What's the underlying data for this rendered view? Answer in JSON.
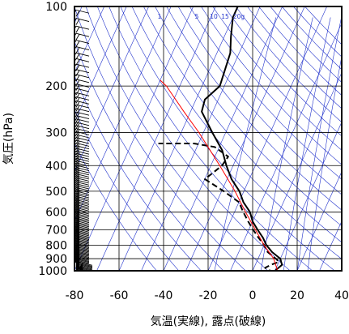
{
  "chart_data": {
    "type": "line",
    "title": "",
    "xlabel": "気温(実線), 露点(破線)",
    "ylabel": "気圧(hPa)",
    "xlim": [
      -80,
      40
    ],
    "ylim": [
      1000,
      100
    ],
    "y_scale": "log",
    "x_ticks": [
      -80,
      -60,
      -40,
      -20,
      0,
      20,
      40
    ],
    "x_tick_labels": [
      "-80",
      "-60",
      "-40",
      "-20",
      "0",
      "20",
      "40"
    ],
    "y_ticks": [
      100,
      200,
      300,
      400,
      500,
      600,
      700,
      800,
      900,
      1000
    ],
    "y_tick_labels": [
      "100",
      "200",
      "300",
      "400",
      "500",
      "600",
      "700",
      "800",
      "900",
      "1000"
    ],
    "mixing_ratio_labels": [
      "1",
      "5",
      "10",
      "15",
      "20g"
    ],
    "series": [
      {
        "style": "solid-black",
        "points": [
          [
            1020,
            12
          ],
          [
            1000,
            10
          ],
          [
            975,
            11
          ],
          [
            950,
            12
          ],
          [
            925,
            11
          ],
          [
            900,
            10
          ],
          [
            850,
            5
          ],
          [
            800,
            1
          ],
          [
            750,
            -2
          ],
          [
            700,
            -6
          ],
          [
            650,
            -10
          ],
          [
            600,
            -13
          ],
          [
            550,
            -18
          ],
          [
            500,
            -22
          ],
          [
            450,
            -28
          ],
          [
            400,
            -33
          ],
          [
            350,
            -38
          ],
          [
            300,
            -46
          ],
          [
            250,
            -55
          ],
          [
            225,
            -56
          ],
          [
            200,
            -52
          ],
          [
            150,
            -54
          ],
          [
            130,
            -57
          ],
          [
            110,
            -60
          ],
          [
            100,
            -60
          ]
        ]
      },
      {
        "style": "dashed-black",
        "points": [
          [
            1020,
            10
          ],
          [
            1000,
            8
          ],
          [
            975,
            5
          ],
          [
            950,
            7
          ],
          [
            925,
            10
          ],
          [
            900,
            8
          ],
          [
            850,
            3
          ],
          [
            800,
            0
          ],
          [
            750,
            -4
          ],
          [
            700,
            -8
          ],
          [
            650,
            -12
          ],
          [
            600,
            -16
          ],
          [
            550,
            -20
          ],
          [
            500,
            -29
          ],
          [
            450,
            -40
          ],
          [
            430,
            -38
          ],
          [
            400,
            -35
          ],
          [
            370,
            -34
          ],
          [
            340,
            -42
          ],
          [
            330,
            -52
          ],
          [
            330,
            -68
          ]
        ]
      },
      {
        "style": "solid-red",
        "points": [
          [
            1020,
            12
          ],
          [
            900,
            7
          ],
          [
            800,
            0
          ],
          [
            700,
            -7
          ],
          [
            600,
            -15
          ],
          [
            500,
            -24
          ],
          [
            400,
            -36
          ],
          [
            300,
            -52
          ],
          [
            250,
            -63
          ],
          [
            200,
            -76
          ],
          [
            190,
            -80
          ]
        ]
      }
    ],
    "wind_barbs": "left column, surface to 100 hPa",
    "grid": true,
    "colors": {
      "isotherm": "#2233cc",
      "parcel": "#ff0000",
      "sounding": "#000000",
      "grid": "#000000"
    }
  }
}
